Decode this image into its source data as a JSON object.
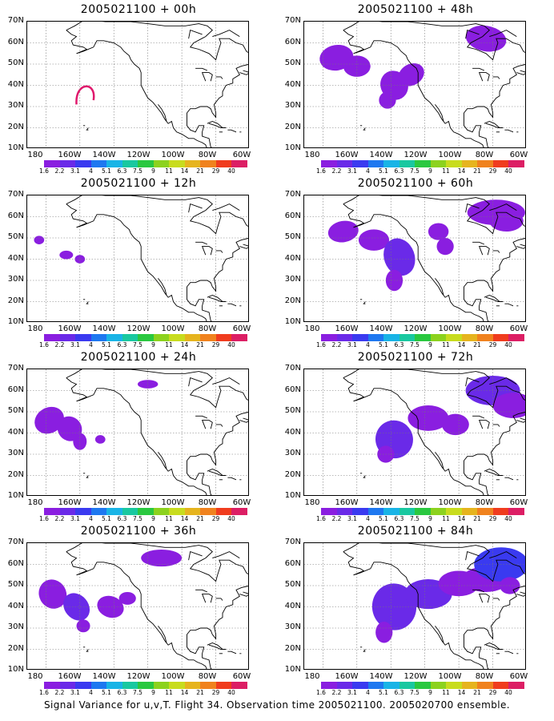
{
  "panels": [
    {
      "title": "2005021100 + 00h"
    },
    {
      "title": "2005021100 + 48h"
    },
    {
      "title": "2005021100 + 12h"
    },
    {
      "title": "2005021100 + 60h"
    },
    {
      "title": "2005021100 + 24h"
    },
    {
      "title": "2005021100 + 72h"
    },
    {
      "title": "2005021100 + 36h"
    },
    {
      "title": "2005021100 + 84h"
    }
  ],
  "lat_labels": [
    "70N",
    "60N",
    "50N",
    "40N",
    "30N",
    "20N",
    "10N"
  ],
  "lon_labels": [
    "180",
    "160W",
    "140W",
    "120W",
    "100W",
    "80W",
    "60W"
  ],
  "colorbar": {
    "labels": [
      "1.6",
      "2.2",
      "3.1",
      "4",
      "5.1",
      "6.3",
      "7.5",
      "9",
      "11",
      "14",
      "21",
      "29",
      "40"
    ],
    "colors": [
      "#8a1ee0",
      "#6a2ae8",
      "#3a3af0",
      "#1e78f0",
      "#19b4e6",
      "#19c8a0",
      "#2ac840",
      "#8cd21e",
      "#c8dc1e",
      "#e6b41e",
      "#f0821e",
      "#f03c1e",
      "#dc1e64"
    ]
  },
  "caption": "Signal Variance for u,v,T. Flight 34. Observation time 2005021100. 2005020700 ensemble."
}
